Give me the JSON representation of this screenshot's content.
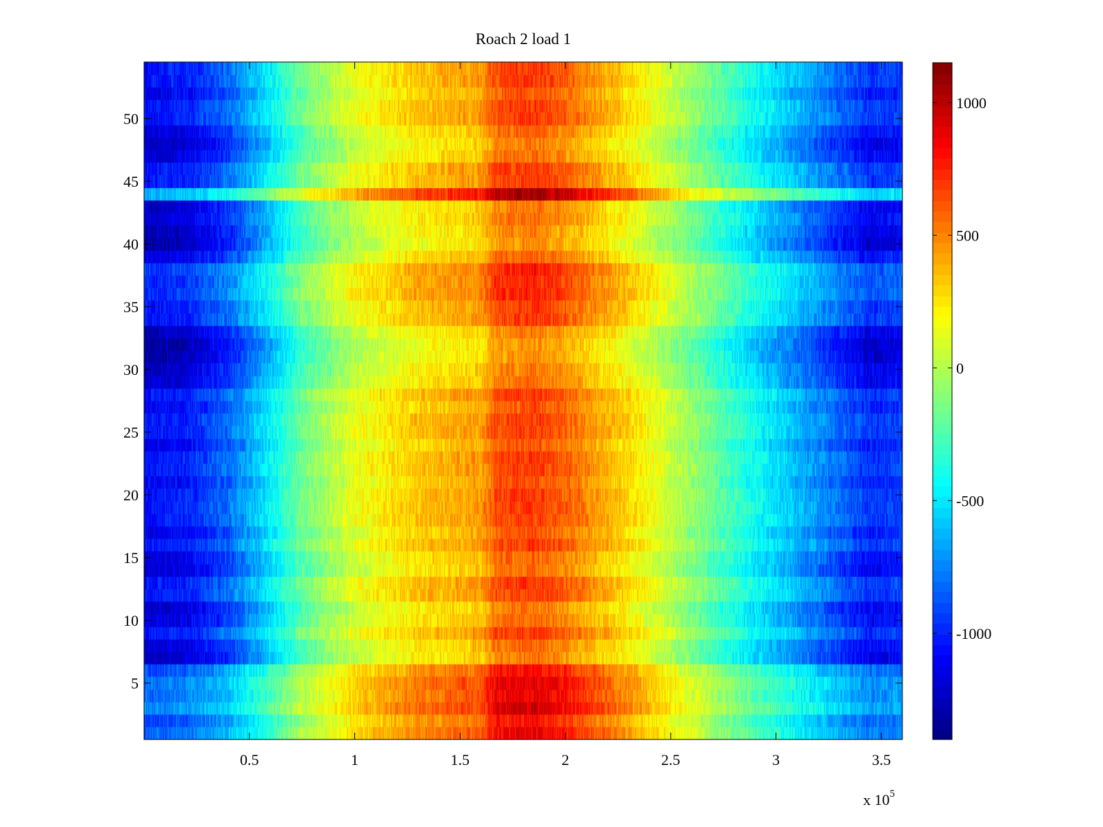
{
  "chart_data": {
    "type": "heatmap",
    "title": "Roach 2 load 1",
    "xlabel": "",
    "ylabel": "",
    "x_multiplier_label": "x 10",
    "x_multiplier_exponent": "5",
    "xlim": [
      0,
      360000
    ],
    "ylim": [
      0.5,
      54.5
    ],
    "x_ticks": [
      50000,
      100000,
      150000,
      200000,
      250000,
      300000,
      350000
    ],
    "x_tick_labels": [
      "0.5",
      "1",
      "1.5",
      "2",
      "2.5",
      "3",
      "3.5"
    ],
    "y_ticks": [
      5,
      10,
      15,
      20,
      25,
      30,
      35,
      40,
      45,
      50
    ],
    "y_tick_labels": [
      "5",
      "10",
      "15",
      "20",
      "25",
      "30",
      "35",
      "40",
      "45",
      "50"
    ],
    "rows": 54,
    "colormap": "jet",
    "color_range": [
      -1400,
      1150
    ],
    "colorbar_ticks": [
      -1000,
      -500,
      0,
      500,
      1000
    ],
    "colorbar_tick_labels": [
      "-1000",
      "-500",
      "0",
      "500",
      "1000"
    ],
    "column_profile": {
      "x": [
        0,
        20000,
        40000,
        60000,
        75000,
        100000,
        130000,
        160000,
        167000,
        185000,
        200000,
        230000,
        260000,
        290000,
        320000,
        345000,
        360000
      ],
      "value": [
        -1050,
        -1000,
        -800,
        -450,
        -150,
        150,
        350,
        450,
        650,
        700,
        600,
        300,
        -50,
        -400,
        -700,
        -950,
        -900
      ]
    },
    "row_offsets": {
      "rows": [
        1,
        2,
        3,
        4,
        5,
        6,
        7,
        8,
        10,
        11,
        14,
        15,
        17,
        21,
        24,
        27,
        29,
        30,
        31,
        32,
        33,
        36,
        37,
        38,
        39,
        40,
        41,
        42,
        43,
        44,
        47,
        48,
        49,
        52
      ],
      "offset": [
        200,
        120,
        300,
        220,
        250,
        150,
        -180,
        -150,
        -130,
        -170,
        -150,
        -120,
        -80,
        -60,
        -80,
        -70,
        -160,
        -190,
        -250,
        -270,
        -200,
        80,
        60,
        90,
        -120,
        -250,
        -220,
        -150,
        -180,
        420,
        -150,
        -200,
        -130,
        -80
      ]
    },
    "noise_amplitude": 130
  }
}
